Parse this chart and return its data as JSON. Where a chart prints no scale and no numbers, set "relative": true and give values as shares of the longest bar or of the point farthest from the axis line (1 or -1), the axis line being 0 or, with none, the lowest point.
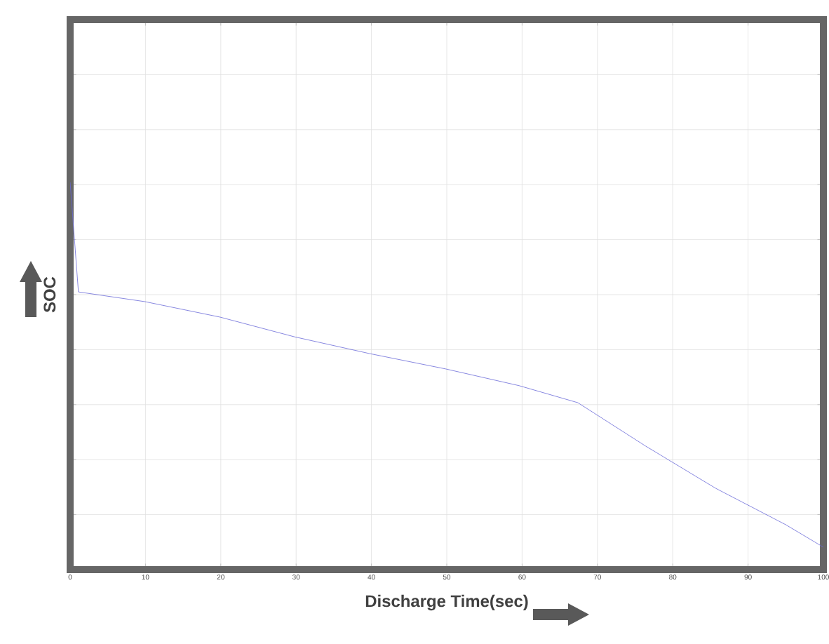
{
  "chart_data": {
    "type": "line",
    "xlabel": "Discharge Time(sec)",
    "ylabel": "SOC",
    "relative": true,
    "grid": true,
    "color": "#6a6ad8",
    "x": [
      0,
      1.1,
      9.9,
      19.9,
      29.8,
      39.7,
      49.9,
      59.6,
      67.4,
      76.4,
      85.7,
      95.0,
      100
    ],
    "values": [
      1.0,
      0.717,
      0.692,
      0.652,
      0.601,
      0.558,
      0.518,
      0.475,
      0.431,
      0.319,
      0.21,
      0.116,
      0.058
    ],
    "xlim": [
      0,
      100
    ],
    "xticks": [
      0,
      10,
      20,
      30,
      40,
      50,
      60,
      70,
      80,
      90,
      100
    ]
  }
}
